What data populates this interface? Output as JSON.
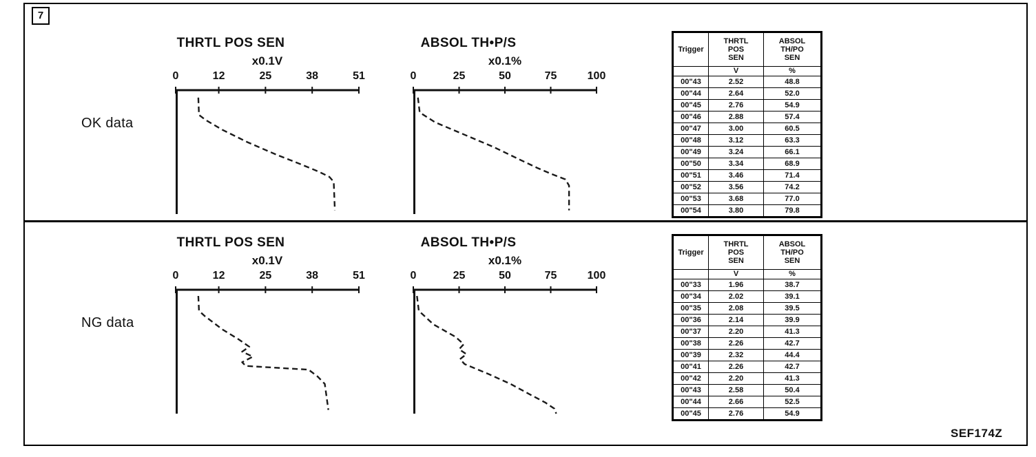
{
  "figure": {
    "number": "7",
    "ref_code": "SEF174Z"
  },
  "sections": [
    {
      "label": "OK data",
      "table": {
        "col_headers": [
          "Trigger",
          "THRTL\nPOS\nSEN",
          "ABSOL\nTH/PO\nSEN"
        ],
        "units": [
          "",
          "V",
          "%"
        ],
        "rows": [
          [
            "00\"43",
            "2.52",
            "48.8"
          ],
          [
            "00\"44",
            "2.64",
            "52.0"
          ],
          [
            "00\"45",
            "2.76",
            "54.9"
          ],
          [
            "00\"46",
            "2.88",
            "57.4"
          ],
          [
            "00\"47",
            "3.00",
            "60.5"
          ],
          [
            "00\"48",
            "3.12",
            "63.3"
          ],
          [
            "00\"49",
            "3.24",
            "66.1"
          ],
          [
            "00\"50",
            "3.34",
            "68.9"
          ],
          [
            "00\"51",
            "3.46",
            "71.4"
          ],
          [
            "00\"52",
            "3.56",
            "74.2"
          ],
          [
            "00\"53",
            "3.68",
            "77.0"
          ],
          [
            "00\"54",
            "3.80",
            "79.8"
          ]
        ]
      }
    },
    {
      "label": "NG data",
      "table": {
        "col_headers": [
          "Trigger",
          "THRTL\nPOS\nSEN",
          "ABSOL\nTH/PO\nSEN"
        ],
        "units": [
          "",
          "V",
          "%"
        ],
        "rows": [
          [
            "00\"33",
            "1.96",
            "38.7"
          ],
          [
            "00\"34",
            "2.02",
            "39.1"
          ],
          [
            "00\"35",
            "2.08",
            "39.5"
          ],
          [
            "00\"36",
            "2.14",
            "39.9"
          ],
          [
            "00\"37",
            "2.20",
            "41.3"
          ],
          [
            "00\"38",
            "2.26",
            "42.7"
          ],
          [
            "00\"39",
            "2.32",
            "44.4"
          ],
          [
            "00\"41",
            "2.26",
            "42.7"
          ],
          [
            "00\"42",
            "2.20",
            "41.3"
          ],
          [
            "00\"43",
            "2.58",
            "50.4"
          ],
          [
            "00\"44",
            "2.66",
            "52.5"
          ],
          [
            "00\"45",
            "2.76",
            "54.9"
          ]
        ]
      }
    }
  ],
  "chart_data": [
    {
      "type": "line",
      "title": "THRTL POS SEN",
      "subtitle": "x0.1V",
      "section": "OK data",
      "line_style": "dashed",
      "orientation": "time flows downward; value on horizontal axis",
      "xlim": [
        0,
        51
      ],
      "x_ticks": [
        0,
        12,
        25,
        38,
        51
      ],
      "points_t_v": [
        [
          0.06,
          6.3
        ],
        [
          0.2,
          6.5
        ],
        [
          0.24,
          8.3
        ],
        [
          0.32,
          13
        ],
        [
          0.42,
          20
        ],
        [
          0.52,
          28
        ],
        [
          0.6,
          35
        ],
        [
          0.66,
          40
        ],
        [
          0.7,
          42.8
        ],
        [
          0.74,
          44
        ],
        [
          0.97,
          44.3
        ]
      ]
    },
    {
      "type": "line",
      "title": "ABSOL TH•P/S",
      "subtitle": "x0.1%",
      "section": "OK data",
      "line_style": "dashed",
      "orientation": "time flows downward; value on horizontal axis",
      "xlim": [
        0,
        100
      ],
      "x_ticks": [
        0,
        25,
        50,
        75,
        100
      ],
      "points_t_v": [
        [
          0.06,
          2.5
        ],
        [
          0.18,
          3.5
        ],
        [
          0.26,
          12
        ],
        [
          0.36,
          28
        ],
        [
          0.46,
          44
        ],
        [
          0.56,
          58
        ],
        [
          0.63,
          68
        ],
        [
          0.68,
          76
        ],
        [
          0.72,
          83
        ],
        [
          0.77,
          85
        ],
        [
          0.97,
          85
        ]
      ]
    },
    {
      "type": "line",
      "title": "THRTL POS SEN",
      "subtitle": "x0.1V",
      "section": "NG data",
      "line_style": "dashed",
      "orientation": "time flows downward; value on horizontal axis",
      "xlim": [
        0,
        51
      ],
      "x_ticks": [
        0,
        12,
        25,
        38,
        51
      ],
      "points_t_v": [
        [
          0.05,
          6.3
        ],
        [
          0.17,
          6.5
        ],
        [
          0.21,
          8
        ],
        [
          0.32,
          13
        ],
        [
          0.4,
          17.5
        ],
        [
          0.46,
          20.5
        ],
        [
          0.5,
          18.5
        ],
        [
          0.54,
          21.5
        ],
        [
          0.585,
          18.5
        ],
        [
          0.615,
          19.5
        ],
        [
          0.645,
          37
        ],
        [
          0.7,
          39.5
        ],
        [
          0.76,
          41.5
        ],
        [
          0.97,
          42.5
        ]
      ]
    },
    {
      "type": "line",
      "title": "ABSOL TH•P/S",
      "subtitle": "x0.1%",
      "section": "NG data",
      "line_style": "dashed",
      "orientation": "time flows downward; value on horizontal axis",
      "xlim": [
        0,
        100
      ],
      "x_ticks": [
        0,
        25,
        50,
        75,
        100
      ],
      "points_t_v": [
        [
          0.05,
          2
        ],
        [
          0.17,
          3
        ],
        [
          0.28,
          11
        ],
        [
          0.38,
          23
        ],
        [
          0.44,
          27.5
        ],
        [
          0.48,
          25
        ],
        [
          0.52,
          29
        ],
        [
          0.56,
          25.5
        ],
        [
          0.6,
          28
        ],
        [
          0.68,
          41
        ],
        [
          0.76,
          53
        ],
        [
          0.84,
          63
        ],
        [
          0.91,
          72
        ],
        [
          0.96,
          77
        ],
        [
          1.0,
          78
        ]
      ]
    }
  ]
}
